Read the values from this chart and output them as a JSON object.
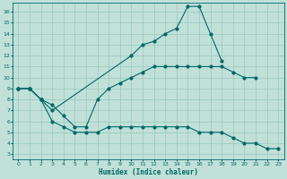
{
  "xlabel": "Humidex (Indice chaleur)",
  "bg_color": "#c0e0d8",
  "grid_color": "#98c8c0",
  "line_color": "#006868",
  "xlim": [
    -0.5,
    23.5
  ],
  "ylim": [
    2.5,
    16.8
  ],
  "xticks": [
    0,
    1,
    2,
    3,
    4,
    5,
    6,
    7,
    8,
    9,
    10,
    11,
    12,
    13,
    14,
    15,
    16,
    17,
    18,
    19,
    20,
    21,
    22,
    23
  ],
  "yticks": [
    3,
    4,
    5,
    6,
    7,
    8,
    9,
    10,
    11,
    12,
    13,
    14,
    15,
    16
  ],
  "line1_x": [
    0,
    1,
    2,
    3,
    10,
    11,
    12,
    13,
    14,
    15,
    16,
    17,
    18
  ],
  "line1_y": [
    9,
    9,
    8,
    7,
    12,
    13,
    13.3,
    14,
    14.5,
    16.5,
    16.5,
    14,
    11.5
  ],
  "line2_x": [
    0,
    1,
    2,
    3,
    4,
    5,
    6,
    7,
    8,
    9,
    10,
    11,
    12,
    13,
    14,
    15,
    16,
    17,
    18,
    19,
    20,
    21
  ],
  "line2_y": [
    9,
    9,
    8,
    7.5,
    6.5,
    5.5,
    5.5,
    8,
    9,
    9.5,
    10,
    10.5,
    11,
    11,
    11,
    11,
    11,
    11,
    11,
    10.5,
    10,
    10
  ],
  "line3_x": [
    0,
    1,
    2,
    3,
    4,
    5,
    6,
    7,
    8,
    9,
    10,
    11,
    12,
    13,
    14,
    15,
    16,
    17,
    18,
    19,
    20,
    21,
    22,
    23
  ],
  "line3_y": [
    9,
    9,
    8,
    6,
    5.5,
    5,
    5,
    5,
    5.5,
    5.5,
    5.5,
    5.5,
    5.5,
    5.5,
    5.5,
    5.5,
    5,
    5,
    5,
    4.5,
    4,
    4,
    3.5,
    3.5
  ]
}
